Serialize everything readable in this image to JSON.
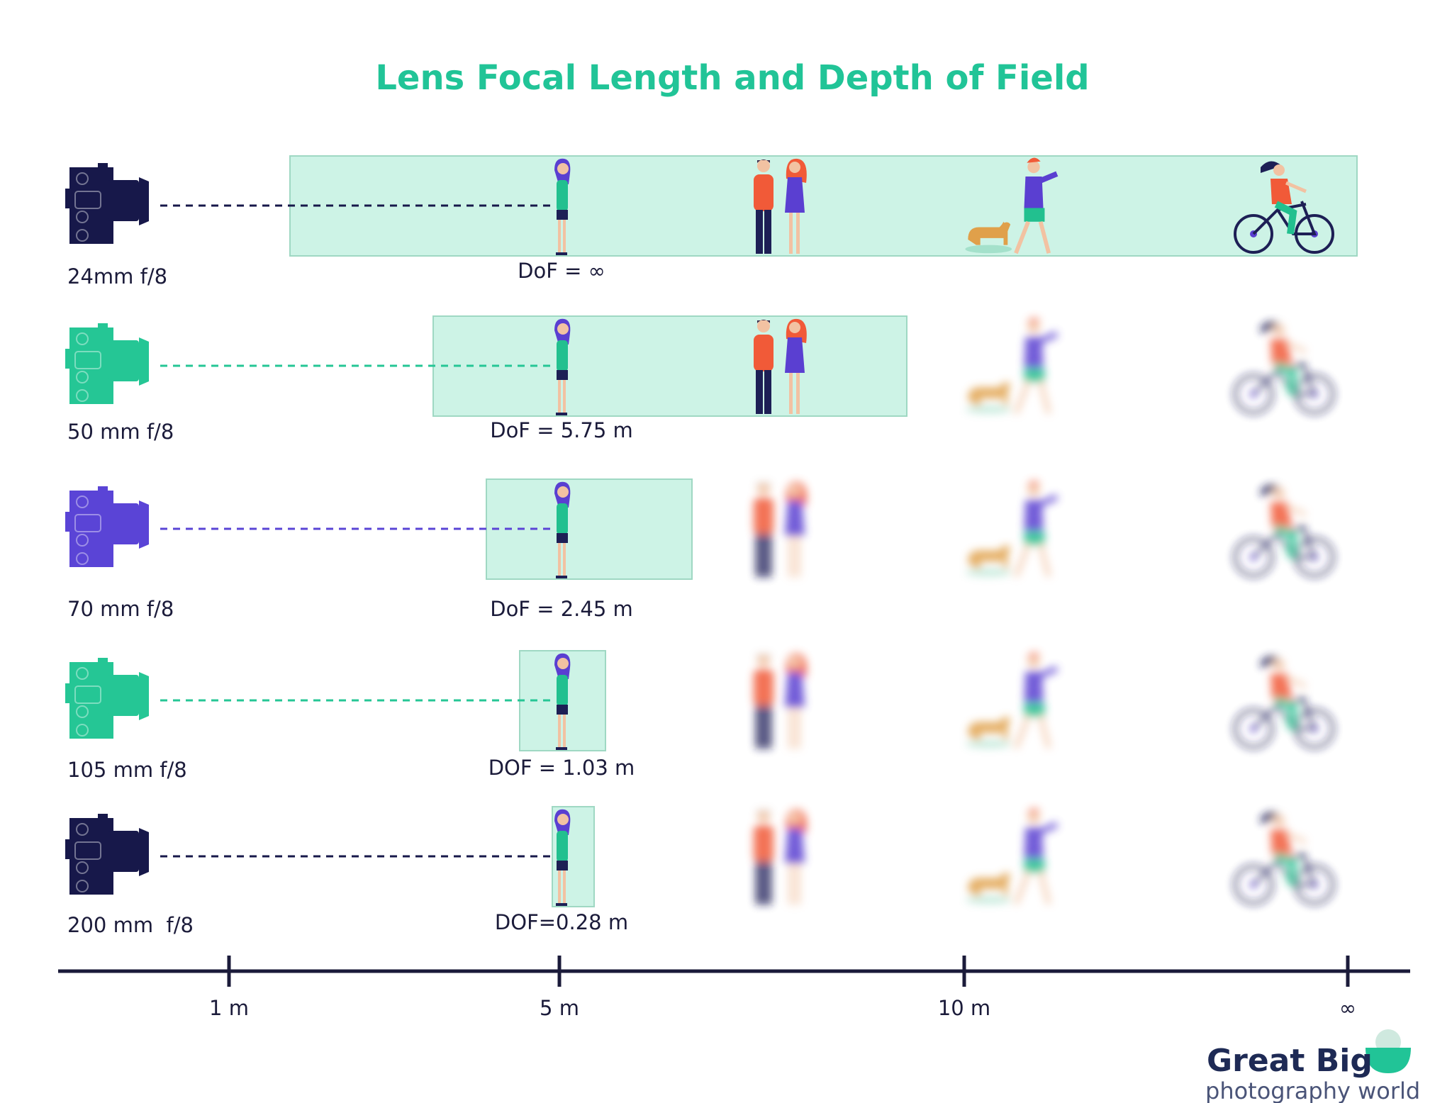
{
  "title": "Lens Focal Length and Depth of Field",
  "rows": [
    {
      "lens": "24mm f/8",
      "dof": "DoF = ∞"
    },
    {
      "lens": "50 mm f/8",
      "dof": "DoF = 5.75 m"
    },
    {
      "lens": "70 mm f/8",
      "dof": "DoF = 2.45 m"
    },
    {
      "lens": "105 mm f/8",
      "dof": "DOF = 1.03 m"
    },
    {
      "lens": "200 mm  f/8",
      "dof": "DOF=0.28 m"
    }
  ],
  "axis": {
    "ticks": [
      "1 m",
      "5 m",
      "10 m",
      "∞"
    ]
  },
  "logo": {
    "brand": "Great Big",
    "tagline": "photography world"
  }
}
